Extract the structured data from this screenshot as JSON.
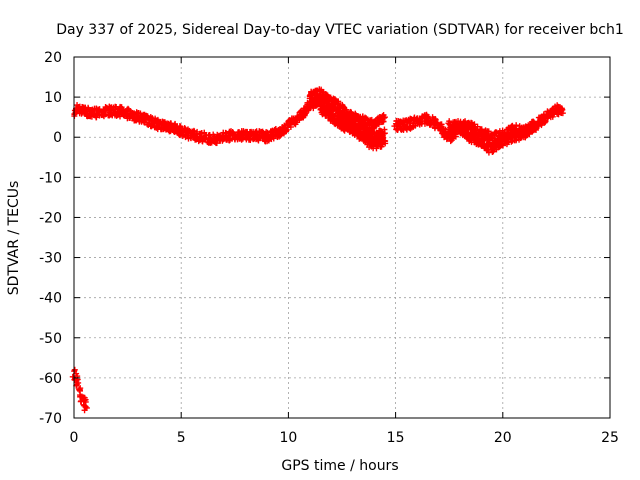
{
  "chart_data": {
    "type": "scatter",
    "title": "Day 337 of 2025, Sidereal Day-to-day VTEC variation (SDTVAR) for receiver bch1",
    "xlabel": "GPS time / hours",
    "ylabel": "SDTVAR / TECUs",
    "xlim": [
      0,
      25
    ],
    "ylim": [
      -70,
      20
    ],
    "xticks": [
      0,
      5,
      10,
      15,
      20,
      25
    ],
    "yticks": [
      -70,
      -60,
      -50,
      -40,
      -30,
      -20,
      -10,
      0,
      10,
      20
    ],
    "grid": true,
    "marker": "plus",
    "color": "#ff0000",
    "series": [
      {
        "name": "main",
        "x": [
          0.0,
          0.2,
          0.5,
          1.0,
          1.5,
          2.0,
          2.5,
          3.0,
          3.5,
          4.0,
          4.5,
          5.0,
          5.5,
          6.0,
          6.5,
          7.0,
          7.5,
          8.0,
          8.5,
          9.0,
          9.5,
          10.0,
          10.5,
          11.0,
          11.5,
          12.0,
          12.5,
          13.0,
          13.5,
          14.0,
          14.5
        ],
        "y": [
          6,
          7,
          6.5,
          6,
          6.5,
          6.5,
          6,
          5,
          4,
          3,
          2.5,
          1.5,
          0.5,
          0,
          -0.5,
          0,
          0.5,
          0.5,
          0.5,
          0,
          1,
          3,
          5,
          8,
          9,
          7,
          5,
          3,
          2,
          0,
          1
        ]
      },
      {
        "name": "upper-branch",
        "x": [
          11.0,
          11.5,
          12.0,
          12.5,
          13.0,
          13.5,
          14.0,
          14.5
        ],
        "y": [
          10,
          11,
          9,
          7,
          5,
          4,
          3,
          5
        ]
      },
      {
        "name": "lower-branch",
        "x": [
          11.5,
          12.0,
          12.5,
          13.0,
          13.5,
          14.0,
          14.5
        ],
        "y": [
          7,
          5,
          3,
          2,
          0,
          -2,
          -1
        ]
      },
      {
        "name": "late-segment",
        "x": [
          15.0,
          15.5,
          16.0,
          16.5,
          17.0,
          17.5,
          18.0,
          18.5,
          19.0,
          19.5,
          20.0,
          20.5,
          21.0,
          21.5,
          22.0,
          22.5,
          22.8
        ],
        "y": [
          3,
          3,
          4,
          4.5,
          3,
          0,
          2,
          0,
          -1,
          -3,
          -1,
          0,
          1,
          3,
          5,
          7,
          6
        ]
      },
      {
        "name": "late-upper",
        "x": [
          17.5,
          18.0,
          18.5,
          19.0,
          19.5,
          20.0,
          20.5,
          21.0,
          21.5
        ],
        "y": [
          3,
          3,
          2.5,
          1,
          0,
          0.5,
          2,
          1.5,
          3
        ]
      },
      {
        "name": "early-drop",
        "x": [
          0.0,
          0.1,
          0.2,
          0.3,
          0.4,
          0.5,
          0.6
        ],
        "y": [
          -59,
          -60,
          -62,
          -64,
          -65.5,
          -66.5,
          -67.5
        ]
      }
    ]
  }
}
